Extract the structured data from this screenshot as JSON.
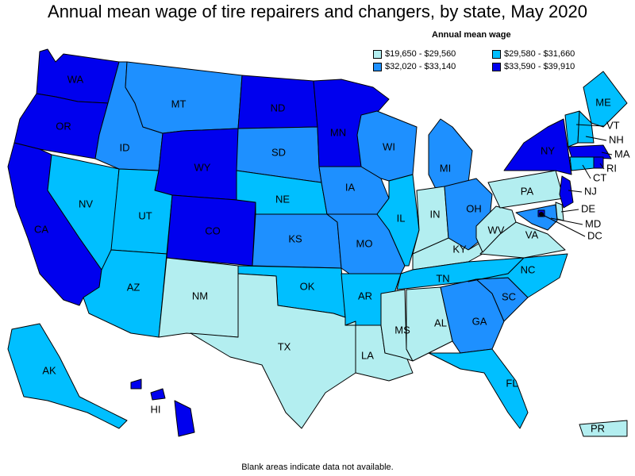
{
  "title": "Annual mean wage of tire repairers and changers, by state, May 2020",
  "legend": {
    "title": "Annual mean wage",
    "items": [
      {
        "label": "$19,650 - $29,560",
        "color": "#b3eef0"
      },
      {
        "label": "$29,580 - $31,660",
        "color": "#00bfff"
      },
      {
        "label": "$32,020 - $33,140",
        "color": "#1e90ff"
      },
      {
        "label": "$33,590 - $39,910",
        "color": "#0000ee"
      }
    ]
  },
  "footnote": "Blank areas indicate data not available.",
  "states": {
    "WA": {
      "label": "WA",
      "tier": 3
    },
    "OR": {
      "label": "OR",
      "tier": 3
    },
    "CA": {
      "label": "CA",
      "tier": 3
    },
    "ID": {
      "label": "ID",
      "tier": 2
    },
    "NV": {
      "label": "NV",
      "tier": 1
    },
    "MT": {
      "label": "MT",
      "tier": 2
    },
    "WY": {
      "label": "WY",
      "tier": 3
    },
    "UT": {
      "label": "UT",
      "tier": 1
    },
    "AZ": {
      "label": "AZ",
      "tier": 1
    },
    "CO": {
      "label": "CO",
      "tier": 3
    },
    "NM": {
      "label": "NM",
      "tier": 0
    },
    "ND": {
      "label": "ND",
      "tier": 3
    },
    "SD": {
      "label": "SD",
      "tier": 2
    },
    "NE": {
      "label": "NE",
      "tier": 1
    },
    "KS": {
      "label": "KS",
      "tier": 2
    },
    "OK": {
      "label": "OK",
      "tier": 1
    },
    "TX": {
      "label": "TX",
      "tier": 0
    },
    "MN": {
      "label": "MN",
      "tier": 3
    },
    "IA": {
      "label": "IA",
      "tier": 2
    },
    "MO": {
      "label": "MO",
      "tier": 2
    },
    "AR": {
      "label": "AR",
      "tier": 1
    },
    "LA": {
      "label": "LA",
      "tier": 0
    },
    "WI": {
      "label": "WI",
      "tier": 2
    },
    "IL": {
      "label": "IL",
      "tier": 1
    },
    "MI": {
      "label": "MI",
      "tier": 2
    },
    "IN": {
      "label": "IN",
      "tier": 0
    },
    "OH": {
      "label": "OH",
      "tier": 2
    },
    "KY": {
      "label": "KY",
      "tier": 0
    },
    "TN": {
      "label": "TN",
      "tier": 1
    },
    "MS": {
      "label": "MS",
      "tier": 0
    },
    "AL": {
      "label": "AL",
      "tier": 0
    },
    "GA": {
      "label": "GA",
      "tier": 2
    },
    "FL": {
      "label": "FL",
      "tier": 1
    },
    "SC": {
      "label": "SC",
      "tier": 2
    },
    "NC": {
      "label": "NC",
      "tier": 1
    },
    "VA": {
      "label": "VA",
      "tier": 0
    },
    "WV": {
      "label": "WV",
      "tier": 0
    },
    "PA": {
      "label": "PA",
      "tier": 0
    },
    "NY": {
      "label": "NY",
      "tier": 3
    },
    "ME": {
      "label": "ME",
      "tier": 1
    },
    "VT": {
      "label": "VT",
      "tier": 1
    },
    "NH": {
      "label": "NH",
      "tier": 1
    },
    "MA": {
      "label": "MA",
      "tier": 3
    },
    "RI": {
      "label": "RI",
      "tier": 3
    },
    "CT": {
      "label": "CT",
      "tier": 1
    },
    "NJ": {
      "label": "NJ",
      "tier": 3
    },
    "DE": {
      "label": "DE",
      "tier": 0
    },
    "MD": {
      "label": "MD",
      "tier": 2
    },
    "DC": {
      "label": "DC",
      "tier": 3
    },
    "AK": {
      "label": "AK",
      "tier": 1
    },
    "HI": {
      "label": "HI",
      "tier": 3
    },
    "PR": {
      "label": "PR",
      "tier": 0
    }
  }
}
